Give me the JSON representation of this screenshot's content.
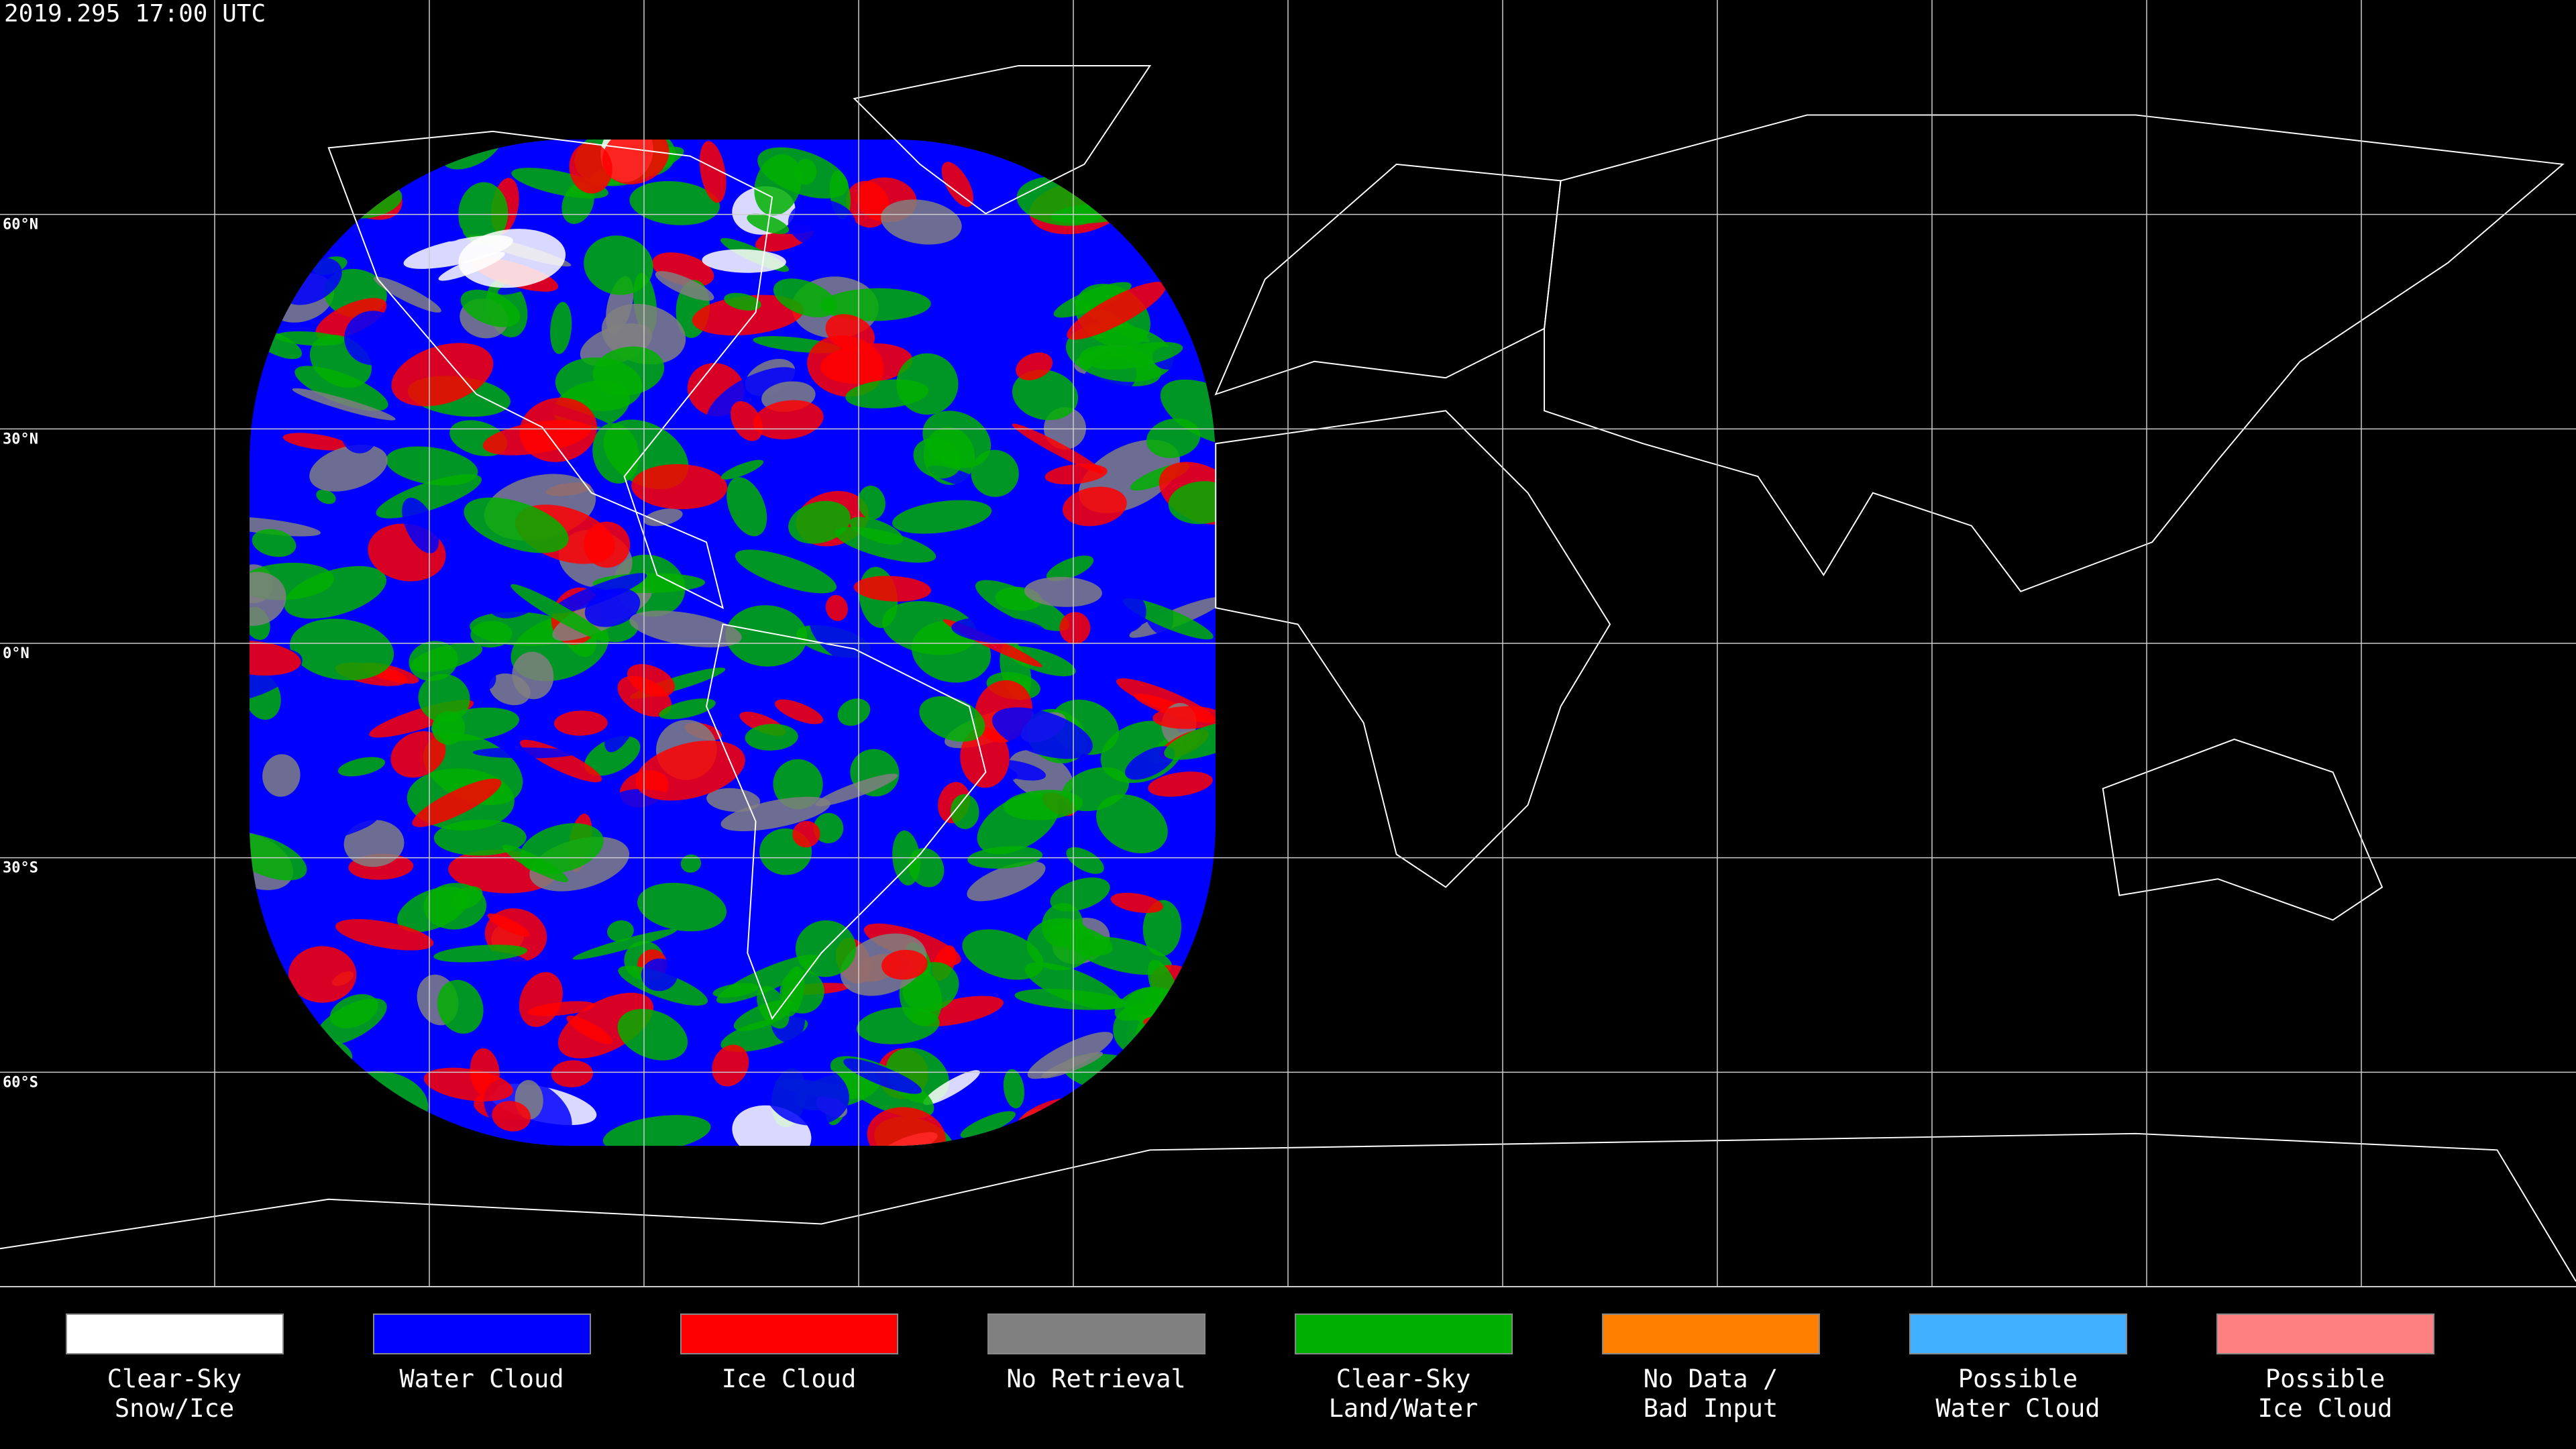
{
  "timestamp": "2019.295 17:00 UTC",
  "latitude_labels": [
    "60°N",
    "30°N",
    "0°N",
    "30°S",
    "60°S"
  ],
  "legend": [
    {
      "label": [
        "Clear-Sky",
        "Snow/Ice"
      ],
      "color": "#ffffff"
    },
    {
      "label": [
        "Water Cloud"
      ],
      "color": "#0000ff"
    },
    {
      "label": [
        "Ice Cloud"
      ],
      "color": "#ff0000"
    },
    {
      "label": [
        "No Retrieval"
      ],
      "color": "#808080"
    },
    {
      "label": [
        "Clear-Sky",
        "Land/Water"
      ],
      "color": "#00b000"
    },
    {
      "label": [
        "No Data /",
        "Bad Input"
      ],
      "color": "#ff8000"
    },
    {
      "label": [
        "Possible",
        "Water Cloud"
      ],
      "color": "#40b0ff"
    },
    {
      "label": [
        "Possible",
        "Ice Cloud"
      ],
      "color": "#ff8080"
    }
  ]
}
